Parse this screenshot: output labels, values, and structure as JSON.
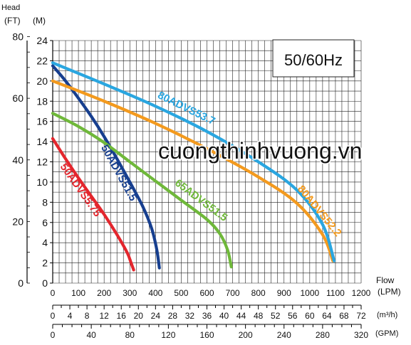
{
  "chart_data": {
    "type": "line",
    "y_axis_left": {
      "title": "Head",
      "unit_ft": "(FT)",
      "unit_m": "(M)",
      "ft_ticks": [
        "80",
        "60",
        "40",
        "20",
        "0"
      ],
      "ft_values": [
        80,
        60,
        40,
        20,
        0
      ]
    },
    "y_axis": {
      "range": [
        0,
        24
      ],
      "ticks": [
        "24",
        "22",
        "20",
        "18",
        "16",
        "14",
        "12",
        "10",
        "8",
        "6",
        "4",
        "2",
        "0"
      ]
    },
    "x_axis": {
      "title": "Flow",
      "unit": "(LPM)",
      "range": [
        0,
        1200
      ],
      "ticks": [
        "0",
        "100",
        "200",
        "300",
        "400",
        "500",
        "600",
        "700",
        "800",
        "900",
        "1000",
        "1100",
        "1200"
      ]
    },
    "m3h_axis": {
      "unit": "(m³/h)",
      "ticks": [
        "0",
        "4",
        "8",
        "12",
        "16",
        "20",
        "24",
        "28",
        "32",
        "36",
        "40",
        "44",
        "48",
        "52",
        "56",
        "60",
        "64",
        "68",
        "72"
      ]
    },
    "gpm_axis": {
      "unit": "(GPM)",
      "ticks": [
        "0",
        "40",
        "80",
        "120",
        "160",
        "200",
        "240",
        "280",
        "320"
      ]
    },
    "frequency_label": "50/60Hz",
    "watermark": "cuongthinhvuong.vn",
    "series": [
      {
        "name": "50ADVS5.75",
        "color": "#e3262d",
        "x": [
          0,
          50,
          100,
          150,
          200,
          250,
          290,
          305,
          315
        ],
        "y": [
          14.3,
          12.3,
          10.4,
          8.6,
          6.8,
          4.8,
          3.0,
          2.0,
          1.3
        ]
      },
      {
        "name": "50ADVS51.5",
        "color": "#173f8f",
        "x": [
          0,
          50,
          100,
          150,
          200,
          250,
          300,
          350,
          385,
          405,
          415
        ],
        "y": [
          21.5,
          20.0,
          18.3,
          16.5,
          14.5,
          12.3,
          10.0,
          7.6,
          5.4,
          3.3,
          1.5
        ]
      },
      {
        "name": "65ADVS51.5",
        "color": "#6fb83a",
        "x": [
          0,
          100,
          200,
          300,
          400,
          500,
          600,
          650,
          680,
          695
        ],
        "y": [
          16.8,
          15.5,
          13.9,
          12.0,
          10.1,
          8.2,
          6.3,
          4.9,
          3.3,
          1.6
        ]
      },
      {
        "name": "80ADVS52.2",
        "color": "#f39a1e",
        "x": [
          0,
          200,
          400,
          600,
          800,
          950,
          1050,
          1090
        ],
        "y": [
          20.0,
          18.0,
          15.8,
          13.3,
          10.5,
          7.9,
          4.8,
          2.2
        ]
      },
      {
        "name": "80ADVS53.7",
        "color": "#2aa6e0",
        "x": [
          0,
          200,
          400,
          600,
          800,
          950,
          1050,
          1095
        ],
        "y": [
          21.8,
          19.7,
          17.5,
          15.0,
          12.0,
          9.2,
          5.8,
          2.2
        ]
      }
    ]
  }
}
